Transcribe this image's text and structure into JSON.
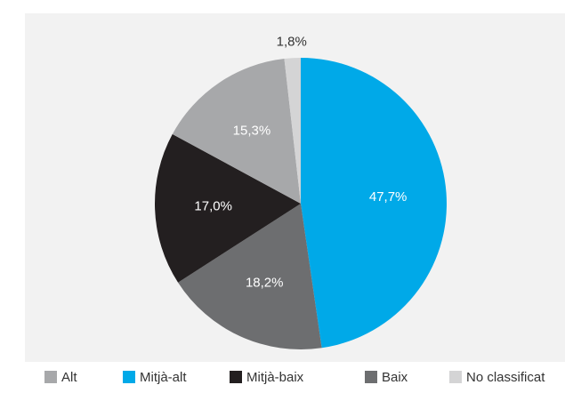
{
  "chart_data": {
    "type": "pie",
    "categories": [
      "Mitjà-alt",
      "Baix",
      "Mitjà-baix",
      "Alt",
      "No classificat"
    ],
    "values": [
      47.7,
      18.2,
      17.0,
      15.3,
      1.8
    ],
    "value_labels": [
      "47,7%",
      "18,2%",
      "17,0%",
      "15,3%",
      "1,8%"
    ],
    "colors": [
      "#00a9e8",
      "#6d6e70",
      "#231f20",
      "#a7a8aa",
      "#d4d4d5"
    ],
    "legend": "bottom"
  }
}
